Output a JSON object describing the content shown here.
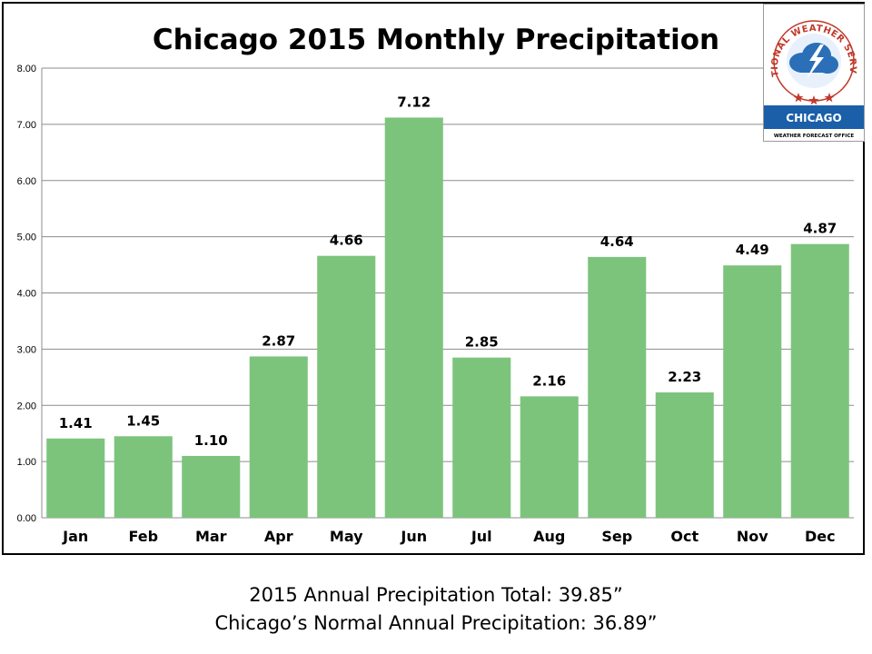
{
  "chart_data": {
    "type": "bar",
    "title": "Chicago 2015 Monthly Precipitation",
    "categories": [
      "Jan",
      "Feb",
      "Mar",
      "Apr",
      "May",
      "Jun",
      "Jul",
      "Aug",
      "Sep",
      "Oct",
      "Nov",
      "Dec"
    ],
    "values": [
      1.41,
      1.45,
      1.1,
      2.87,
      4.66,
      7.12,
      2.85,
      2.16,
      4.64,
      2.23,
      4.49,
      4.87
    ],
    "value_labels": [
      "1.41",
      "1.45",
      "1.10",
      "2.87",
      "4.66",
      "7.12",
      "2.85",
      "2.16",
      "4.64",
      "2.23",
      "4.49",
      "4.87"
    ],
    "ylim": [
      0,
      8
    ],
    "yticks": [
      "0.00",
      "1.00",
      "2.00",
      "3.00",
      "4.00",
      "5.00",
      "6.00",
      "7.00",
      "8.00"
    ],
    "xlabel": "",
    "ylabel": "",
    "grid": true,
    "bar_color": "#7cc47c"
  },
  "logo": {
    "arc_text": "NATIONAL WEATHER SERVICE",
    "office": "CHICAGO",
    "subtitle": "WEATHER FORECAST OFFICE",
    "band_color": "#1a5fa8"
  },
  "footer": {
    "line1": "2015 Annual Precipitation Total: 39.85”",
    "line2": "Chicago’s Normal Annual Precipitation: 36.89”"
  }
}
